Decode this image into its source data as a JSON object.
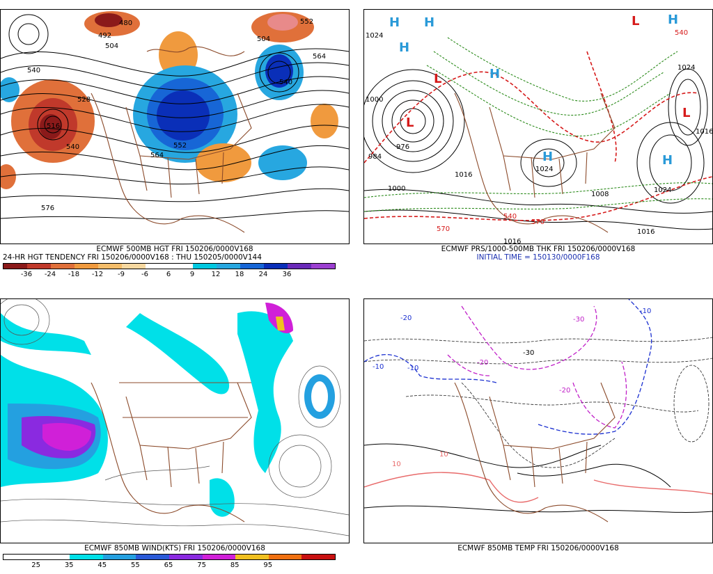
{
  "panel1": {
    "caption_line1": "ECMWF 500MB HGT FRI 150206/0000V168",
    "caption_line2": "24-HR HGT TENDENCY FRI 150206/0000V168 : THU 150205/0000V144",
    "contour_labels": [
      "480",
      "492",
      "528",
      "540",
      "516",
      "540",
      "504",
      "564",
      "552",
      "552",
      "540",
      "504",
      "564",
      "576"
    ],
    "legend_colors": [
      "#8b1a1a",
      "#c0392b",
      "#e0703a",
      "#f09a3e",
      "#f4bd6a",
      "#f6d8a0",
      "#ffffff",
      "#ffffff",
      "#00c8e0",
      "#27a7e0",
      "#1766d6",
      "#0a2fb8",
      "#6a2ab8",
      "#9b3fd0"
    ],
    "legend_ticks": [
      "-36",
      "-24",
      "-18",
      "-12",
      "-9",
      "-6",
      "6",
      "9",
      "12",
      "18",
      "24",
      "36"
    ]
  },
  "panel2": {
    "caption_line1": "ECMWF PRS/1000-500MB THK FRI 150206/0000V168",
    "caption_line2": "INITIAL TIME = 150130/0000F168",
    "pressure_labels": [
      "1024",
      "1000",
      "984",
      "976",
      "1000",
      "1016",
      "1024",
      "1024",
      "1016",
      "1008",
      "1016",
      "1024",
      "1016"
    ],
    "thickness_labels": [
      "570",
      "540",
      "570",
      "540"
    ],
    "high_marker": "H",
    "low_marker": "L"
  },
  "panel3": {
    "caption": "ECMWF 850MB WIND(KTS) FRI 150206/0000V168",
    "legend_colors": [
      "#ffffff",
      "#ffffff",
      "#00e0e8",
      "#24a0e0",
      "#2a5ad8",
      "#8a2ae0",
      "#d020d8",
      "#f0c020",
      "#f07010",
      "#c81010"
    ],
    "legend_ticks": [
      "25",
      "35",
      "45",
      "55",
      "65",
      "75",
      "85",
      "95"
    ]
  },
  "panel4": {
    "caption": "ECMWF 850MB TEMP FRI 150206/0000V168",
    "temp_labels": [
      "-10",
      "-20",
      "-30",
      "-20",
      "-10",
      "-20",
      "-30",
      "10",
      "10",
      "-10"
    ]
  }
}
